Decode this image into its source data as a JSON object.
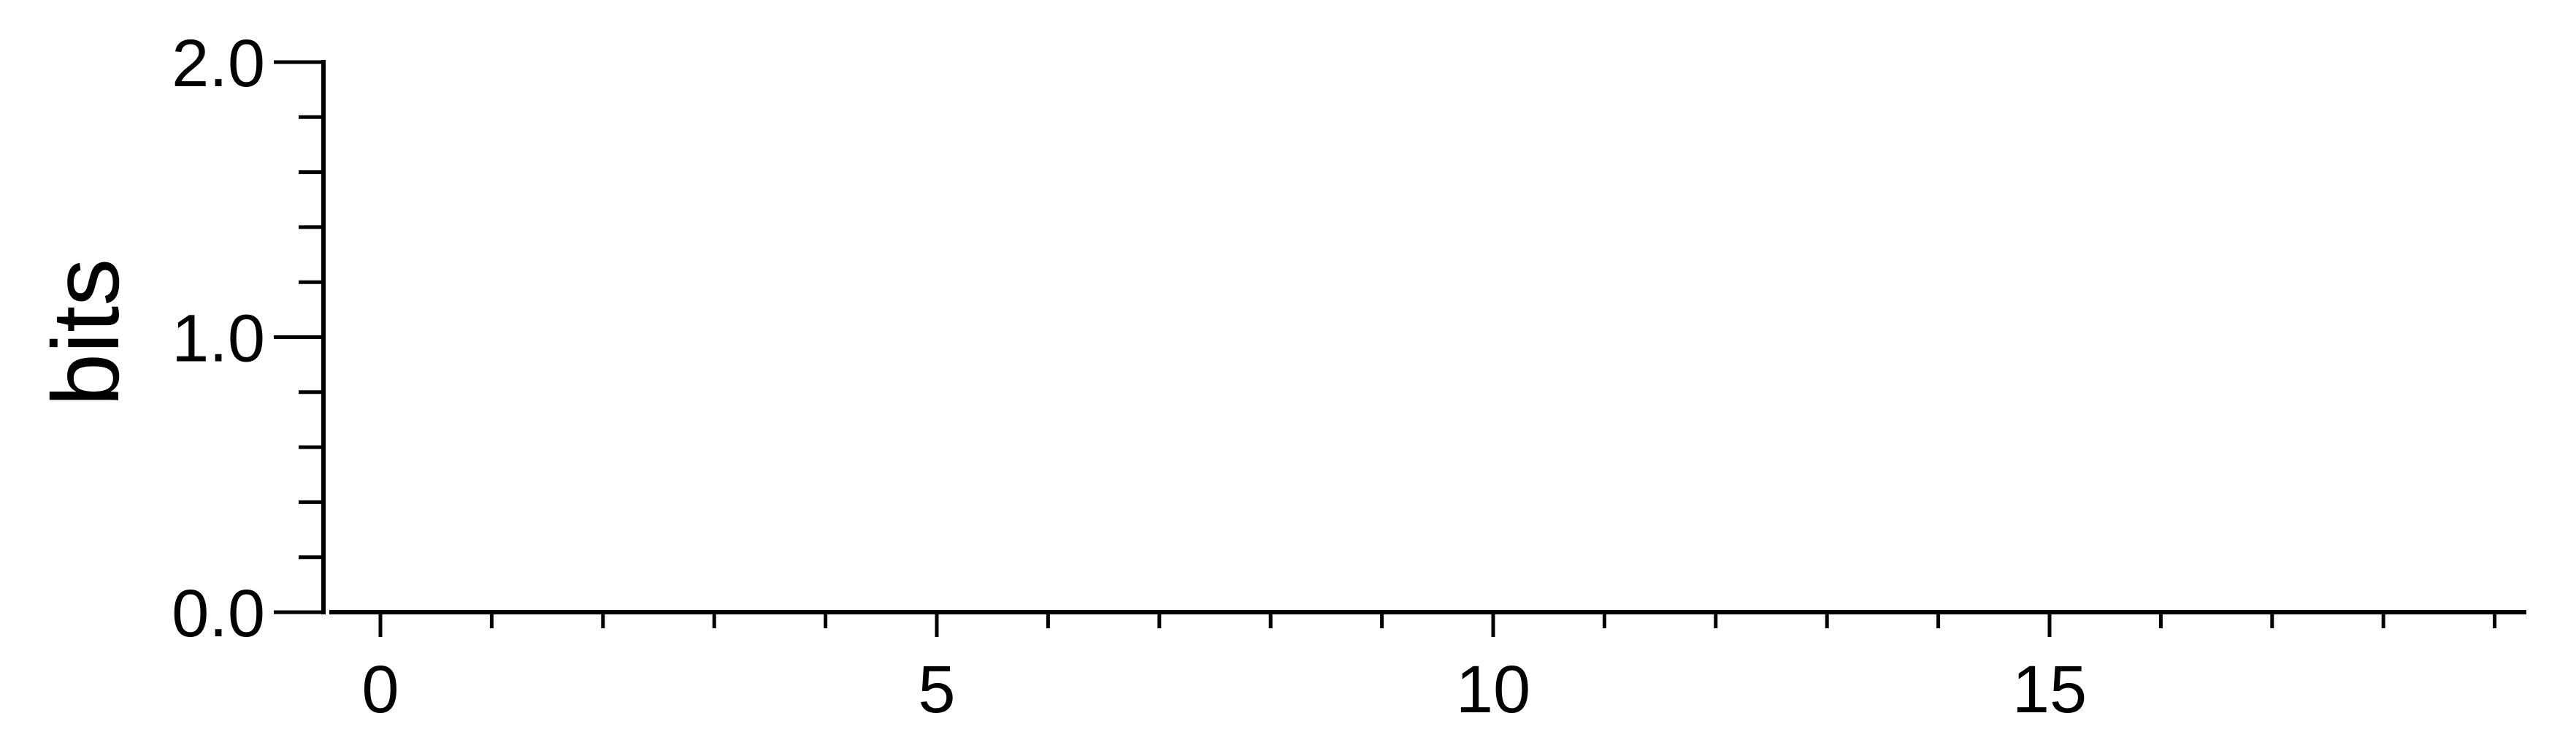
{
  "chart_data": {
    "type": "bar",
    "title": "",
    "xlabel": "",
    "ylabel": "bits",
    "xlim": [
      -1,
      19
    ],
    "ylim": [
      0,
      2
    ],
    "x_major_ticks": [
      0,
      5,
      10,
      15
    ],
    "x_minor_ticks": [
      0,
      1,
      2,
      3,
      4,
      5,
      6,
      7,
      8,
      9,
      10,
      11,
      12,
      13,
      14,
      15,
      16,
      17,
      18,
      19
    ],
    "y_major_ticks": [
      0,
      1,
      2
    ],
    "y_minor_ticks": [
      0.2,
      0.4,
      0.6,
      0.8,
      1.2,
      1.4,
      1.6,
      1.8
    ],
    "x_tick_labels": [
      "0",
      "5",
      "10",
      "15"
    ],
    "y_tick_labels": [
      "0.0",
      "1.0",
      "2.0"
    ],
    "series": [],
    "grid": false,
    "legend": "none",
    "colors": {
      "axis": "#000000",
      "background": "#ffffff"
    }
  }
}
